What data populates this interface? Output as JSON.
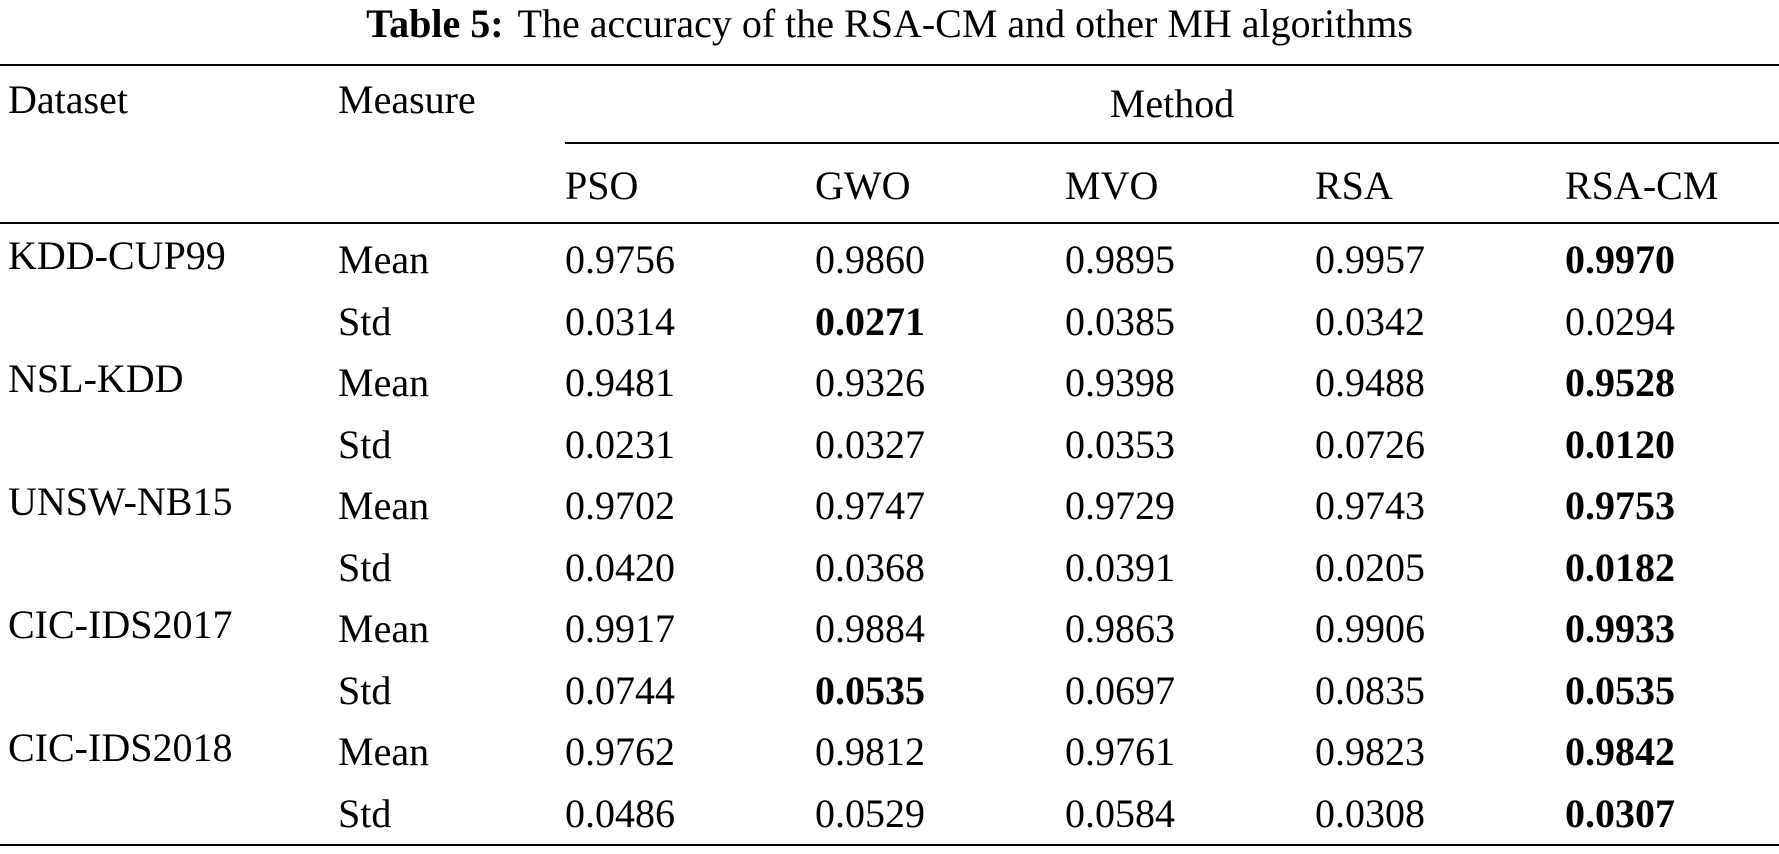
{
  "caption": {
    "label": "Table 5:",
    "text": "The accuracy of the RSA-CM and other MH algorithms"
  },
  "headers": {
    "dataset": "Dataset",
    "measure": "Measure",
    "method": "Method",
    "methods": [
      "PSO",
      "GWO",
      "MVO",
      "RSA",
      "RSA-CM"
    ]
  },
  "rows": [
    {
      "dataset": "KDD-CUP99",
      "measure": "Mean",
      "values": [
        "0.9756",
        "0.9860",
        "0.9895",
        "0.9957",
        "0.9970"
      ],
      "bold": [
        false,
        false,
        false,
        false,
        true
      ]
    },
    {
      "dataset": "",
      "measure": "Std",
      "values": [
        "0.0314",
        "0.0271",
        "0.0385",
        "0.0342",
        "0.0294"
      ],
      "bold": [
        false,
        true,
        false,
        false,
        false
      ]
    },
    {
      "dataset": "NSL-KDD",
      "measure": "Mean",
      "values": [
        "0.9481",
        "0.9326",
        "0.9398",
        "0.9488",
        "0.9528"
      ],
      "bold": [
        false,
        false,
        false,
        false,
        true
      ]
    },
    {
      "dataset": "",
      "measure": "Std",
      "values": [
        "0.0231",
        "0.0327",
        "0.0353",
        "0.0726",
        "0.0120"
      ],
      "bold": [
        false,
        false,
        false,
        false,
        true
      ]
    },
    {
      "dataset": "UNSW-NB15",
      "measure": "Mean",
      "values": [
        "0.9702",
        "0.9747",
        "0.9729",
        "0.9743",
        "0.9753"
      ],
      "bold": [
        false,
        false,
        false,
        false,
        true
      ]
    },
    {
      "dataset": "",
      "measure": "Std",
      "values": [
        "0.0420",
        "0.0368",
        "0.0391",
        "0.0205",
        "0.0182"
      ],
      "bold": [
        false,
        false,
        false,
        false,
        true
      ]
    },
    {
      "dataset": "CIC-IDS2017",
      "measure": "Mean",
      "values": [
        "0.9917",
        "0.9884",
        "0.9863",
        "0.9906",
        "0.9933"
      ],
      "bold": [
        false,
        false,
        false,
        false,
        true
      ]
    },
    {
      "dataset": "",
      "measure": "Std",
      "values": [
        "0.0744",
        "0.0535",
        "0.0697",
        "0.0835",
        "0.0535"
      ],
      "bold": [
        false,
        true,
        false,
        false,
        true
      ]
    },
    {
      "dataset": "CIC-IDS2018",
      "measure": "Mean",
      "values": [
        "0.9762",
        "0.9812",
        "0.9761",
        "0.9823",
        "0.9842"
      ],
      "bold": [
        false,
        false,
        false,
        false,
        true
      ]
    },
    {
      "dataset": "",
      "measure": "Std",
      "values": [
        "0.0486",
        "0.0529",
        "0.0584",
        "0.0308",
        "0.0307"
      ],
      "bold": [
        false,
        false,
        false,
        false,
        true
      ]
    }
  ]
}
